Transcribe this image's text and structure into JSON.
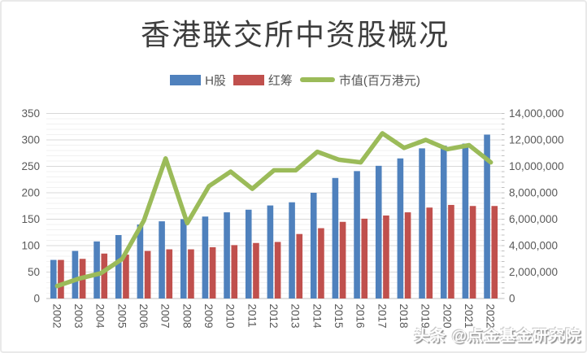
{
  "title": "香港联交所中资股概况",
  "watermark": "头条 @点金基金研究院",
  "colors": {
    "h_share_bar": "#4F81BD",
    "red_chip_bar": "#C0504D",
    "market_cap_line": "#9BBB59",
    "axis_text": "#595959",
    "grid_major": "#D8D8D8",
    "grid_minor": "#F1F1F1",
    "baseline": "#BFBFBF",
    "title_text": "#3D3D3D"
  },
  "chart_data": {
    "type": "combo(bar+line)",
    "title": "香港联交所中资股概况",
    "legend_position": "top",
    "grid": "horizontal major + minor, no vertical",
    "categories": [
      2002,
      2003,
      2004,
      2005,
      2006,
      2007,
      2008,
      2009,
      2010,
      2011,
      2012,
      2013,
      2014,
      2015,
      2016,
      2017,
      2018,
      2019,
      2020,
      2021,
      2022
    ],
    "series": [
      {
        "name": "H股",
        "type": "bar",
        "axis": "left",
        "color": "#4F81BD",
        "values": [
          73,
          90,
          108,
          120,
          140,
          146,
          150,
          155,
          163,
          168,
          176,
          182,
          200,
          228,
          241,
          251,
          265,
          284,
          289,
          293,
          310
        ]
      },
      {
        "name": "红筹",
        "type": "bar",
        "axis": "left",
        "color": "#C0504D",
        "values": [
          73,
          75,
          85,
          83,
          90,
          93,
          93,
          97,
          101,
          105,
          107,
          122,
          133,
          145,
          151,
          157,
          163,
          172,
          177,
          175,
          175
        ]
      },
      {
        "name": "市值(百万港元)",
        "type": "line",
        "axis": "right",
        "color": "#9BBB59",
        "values": [
          950000,
          1500000,
          1900000,
          3000000,
          5900000,
          10600000,
          5700000,
          8500000,
          9600000,
          8300000,
          9700000,
          9700000,
          11100000,
          10500000,
          10300000,
          12500000,
          11400000,
          12000000,
          11300000,
          11600000,
          10300000
        ]
      }
    ],
    "left_axis": {
      "min": 0,
      "max": 350,
      "major_step": 50,
      "minor_step": 10,
      "tick_labels": [
        "0",
        "50",
        "100",
        "150",
        "200",
        "250",
        "300",
        "350"
      ]
    },
    "right_axis": {
      "min": 0,
      "max": 14000000,
      "major_step": 2000000,
      "minor_step": 400000,
      "tick_labels": [
        "0",
        "2,000,000",
        "4,000,000",
        "6,000,000",
        "8,000,000",
        "10,000,000",
        "12,000,000",
        "14,000,000"
      ]
    }
  }
}
